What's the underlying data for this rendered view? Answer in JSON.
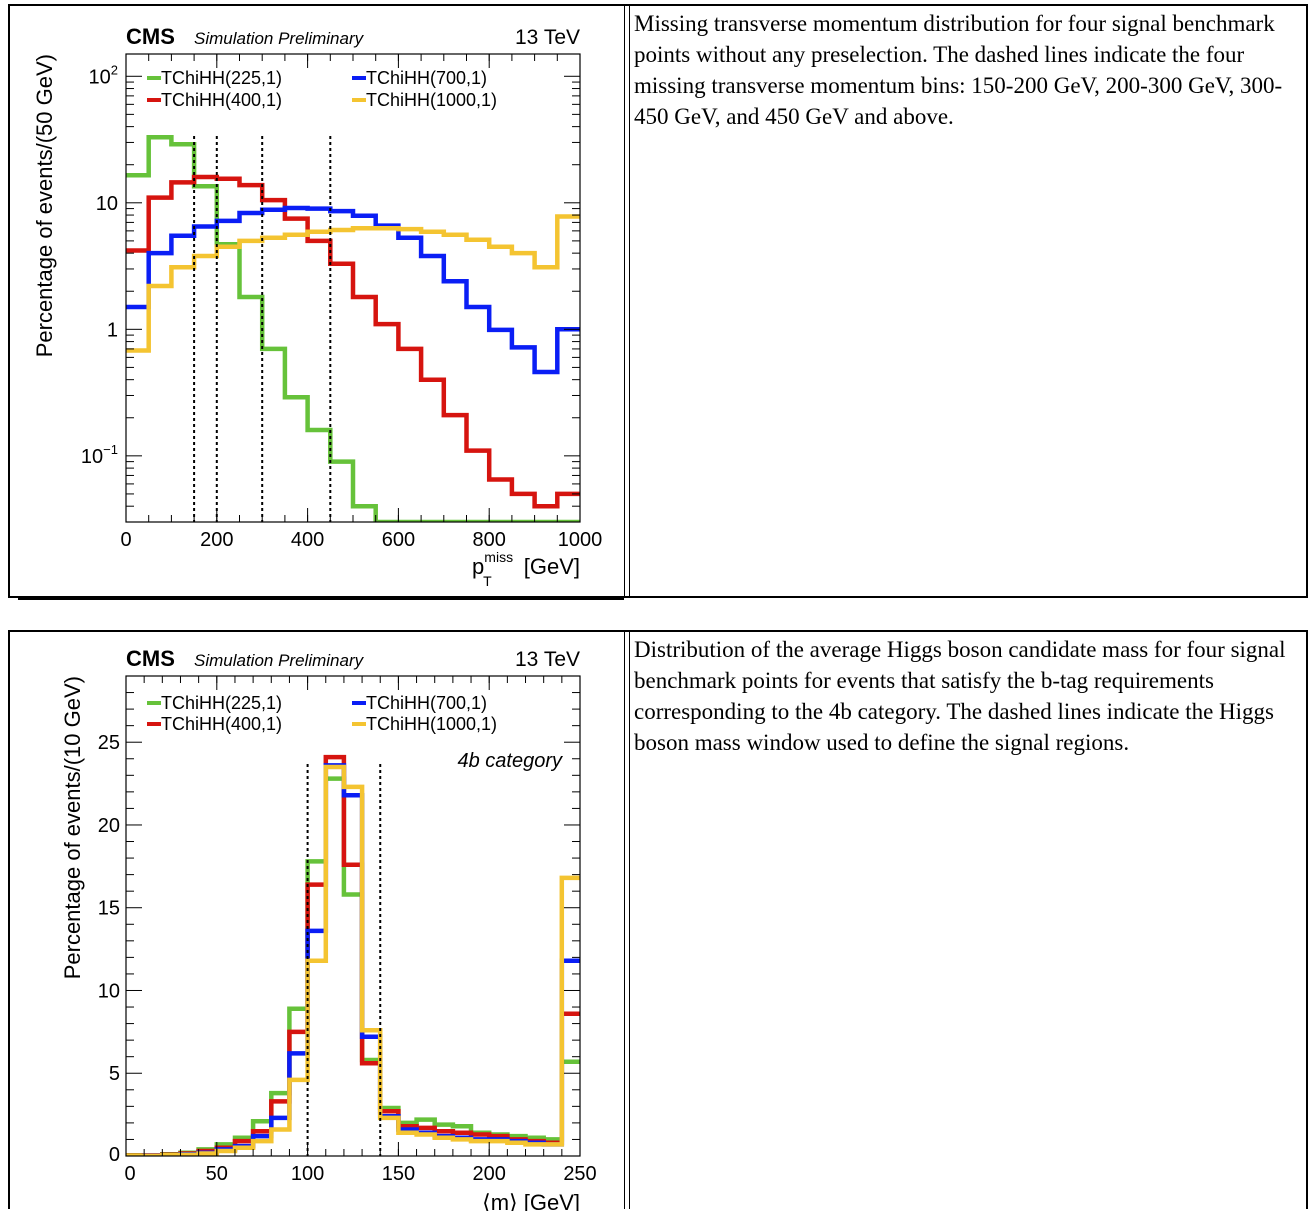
{
  "chart_data": [
    {
      "type": "line",
      "cms": "CMS",
      "cms_sub": "Simulation Preliminary",
      "energy": "13 TeV",
      "xlabel_main": "p",
      "xlabel_sup": "miss",
      "xlabel_sub": "T",
      "xlabel_unit": "[GeV]",
      "ylabel": "Percentage of events/(50 GeV)",
      "xlim": [
        0,
        1000
      ],
      "ylim": [
        0.03,
        150
      ],
      "y_scale": "log",
      "x_ticks": [
        "0",
        "200",
        "400",
        "600",
        "800",
        "1000"
      ],
      "y_tick_labels": [
        {
          "value": 100,
          "base": "10",
          "exp": "2"
        },
        {
          "value": 10,
          "base": "10",
          "exp": ""
        },
        {
          "value": 1,
          "base": "1",
          "exp": ""
        },
        {
          "value": 0.1,
          "base": "10",
          "exp": "−1"
        }
      ],
      "dashed_x": [
        150,
        200,
        300,
        450
      ],
      "bin_edges": [
        0,
        50,
        100,
        150,
        200,
        250,
        300,
        350,
        400,
        450,
        500,
        550,
        600,
        650,
        700,
        750,
        800,
        850,
        900,
        950,
        1000
      ],
      "series": [
        {
          "name": "TChiHH(225,1)",
          "color": "#66c23a",
          "values": [
            16.5,
            33,
            29,
            13.5,
            4.7,
            1.8,
            0.7,
            0.29,
            0.16,
            0.09,
            0.04,
            0.03,
            0.03,
            0.03,
            0.03,
            0.03,
            0.03,
            0.03,
            0.03,
            0.03
          ]
        },
        {
          "name": "TChiHH(400,1)",
          "color": "#d6140f",
          "values": [
            4.2,
            11,
            14.5,
            16,
            15.5,
            13.8,
            10.5,
            7.5,
            5,
            3.3,
            1.8,
            1.1,
            0.7,
            0.4,
            0.21,
            0.11,
            0.065,
            0.05,
            0.04,
            0.05
          ]
        },
        {
          "name": "TChiHH(700,1)",
          "color": "#0a1ef5",
          "values": [
            1.5,
            4,
            5.5,
            6.5,
            7.2,
            8.3,
            8.8,
            9.1,
            9.0,
            8.6,
            7.9,
            6.6,
            5.3,
            3.8,
            2.4,
            1.5,
            0.99,
            0.72,
            0.46,
            1.0
          ]
        },
        {
          "name": "TChiHH(1000,1)",
          "color": "#f4c431",
          "values": [
            0.68,
            2.2,
            3.1,
            3.8,
            4.5,
            5,
            5.3,
            5.6,
            5.9,
            6.1,
            6.3,
            6.3,
            6.2,
            5.9,
            5.6,
            5.1,
            4.5,
            4.0,
            3.1,
            7.8
          ]
        }
      ],
      "legend_placement": "top-left"
    },
    {
      "type": "line",
      "cms": "CMS",
      "cms_sub": "Simulation Preliminary",
      "energy": "13 TeV",
      "category_label": "4b category",
      "xlabel": "⟨m⟩ [GeV]",
      "ylabel": "Percentage of events/(10 GeV)",
      "xlim": [
        0,
        250
      ],
      "ylim": [
        0,
        29
      ],
      "x_ticks": [
        "0",
        "50",
        "100",
        "150",
        "200",
        "250"
      ],
      "y_ticks": [
        "0",
        "5",
        "10",
        "15",
        "20",
        "25"
      ],
      "dashed_x": [
        100,
        140
      ],
      "bin_edges": [
        0,
        10,
        20,
        30,
        40,
        50,
        60,
        70,
        80,
        90,
        100,
        110,
        120,
        130,
        140,
        150,
        160,
        170,
        180,
        190,
        200,
        210,
        220,
        230,
        240,
        250
      ],
      "series": [
        {
          "name": "TChiHH(225,1)",
          "color": "#66c23a",
          "values": [
            0.05,
            0.05,
            0.1,
            0.2,
            0.4,
            0.7,
            1.1,
            2.1,
            3.8,
            8.9,
            17.8,
            22.8,
            15.8,
            5.8,
            2.9,
            2.0,
            2.2,
            1.9,
            1.8,
            1.4,
            1.3,
            1.2,
            1.1,
            1.0,
            5.7
          ]
        },
        {
          "name": "TChiHH(400,1)",
          "color": "#d6140f",
          "values": [
            0.03,
            0.04,
            0.08,
            0.15,
            0.3,
            0.5,
            0.9,
            1.5,
            3.3,
            7.5,
            16.4,
            24.1,
            17.6,
            5.6,
            2.7,
            1.8,
            1.7,
            1.5,
            1.4,
            1.3,
            1.2,
            1.0,
            0.9,
            0.8,
            8.6
          ]
        },
        {
          "name": "TChiHH(700,1)",
          "color": "#0a1ef5",
          "values": [
            0.02,
            0.03,
            0.05,
            0.1,
            0.2,
            0.4,
            0.6,
            1.2,
            2.3,
            6.2,
            13.6,
            23.6,
            21.8,
            7.2,
            2.4,
            1.6,
            1.4,
            1.2,
            1.1,
            1.0,
            1.0,
            0.9,
            0.8,
            0.7,
            11.8
          ]
        },
        {
          "name": "TChiHH(1000,1)",
          "color": "#f4c431",
          "values": [
            0.02,
            0.02,
            0.04,
            0.08,
            0.15,
            0.3,
            0.5,
            0.9,
            1.6,
            4.6,
            11.8,
            23.5,
            22.3,
            7.6,
            2.3,
            1.4,
            1.3,
            1.1,
            1.0,
            0.9,
            0.9,
            0.8,
            0.7,
            0.7,
            16.8
          ]
        }
      ],
      "legend_placement": "top-left"
    }
  ],
  "captions": [
    "Missing transverse momentum distribution for four signal benchmark points without any preselection. The dashed lines indicate the four missing transverse momentum bins: 150-200 GeV, 200-300 GeV, 300-450 GeV, and 450 GeV and above.",
    "Distribution of the average Higgs boson candidate mass for four signal benchmark points for events that satisfy the b-tag requirements corresponding to the 4b category. The dashed lines indicate the Higgs boson mass window used to define the signal regions."
  ]
}
